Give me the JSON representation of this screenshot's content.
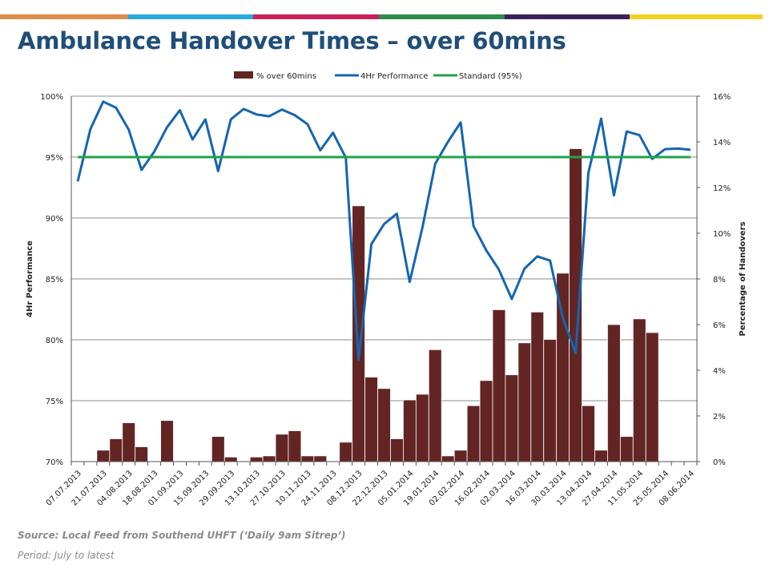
{
  "header": {
    "accent_colors": [
      "#d98c4b",
      "#2aa8dc",
      "#cc1f5c",
      "#2e8b4a",
      "#3b1f5e",
      "#f2d024"
    ],
    "title": "Ambulance Handover Times – over 60mins"
  },
  "footer": {
    "source": "Source: Local Feed from Southend UHFT (‘Daily 9am Sitrep’)",
    "period": "Period: July to latest"
  },
  "chart_data": {
    "type": "bar",
    "legend_position": "top",
    "grid": true,
    "ylabel_left": "4Hr Performance",
    "ylabel_right": "Percentage of Handovers",
    "ylim_left": [
      0.7,
      1.0
    ],
    "ylim_right": [
      0,
      0.16
    ],
    "yticks_left": [
      "70%",
      "75%",
      "80%",
      "85%",
      "90%",
      "95%",
      "100%"
    ],
    "yticks_right": [
      "0%",
      "2%",
      "4%",
      "6%",
      "8%",
      "10%",
      "12%",
      "14%",
      "16%"
    ],
    "x_tick_labels": [
      "07.07.2013",
      "21.07.2013",
      "04.08.2013",
      "18.08.2013",
      "01.09.2013",
      "15.09.2013",
      "29.09.2013",
      "13.10.2013",
      "27.10.2013",
      "10.11.2013",
      "24.11.2013",
      "08.12.2013",
      "22.12.2013",
      "05.01.2014",
      "19.01.2014",
      "02.02.2014",
      "16.02.2014",
      "02.03.2014",
      "16.03.2014",
      "30.03.2014",
      "13.04.2014",
      "27.04.2014",
      "11.05.2014",
      "25.05.2014",
      "08.06.2014"
    ],
    "categories": [
      "07.07.2013",
      "14.07.2013",
      "21.07.2013",
      "28.07.2013",
      "04.08.2013",
      "11.08.2013",
      "18.08.2013",
      "25.08.2013",
      "01.09.2013",
      "08.09.2013",
      "15.09.2013",
      "22.09.2013",
      "29.09.2013",
      "06.10.2013",
      "13.10.2013",
      "20.10.2013",
      "27.10.2013",
      "03.11.2013",
      "10.11.2013",
      "17.11.2013",
      "24.11.2013",
      "01.12.2013",
      "08.12.2013",
      "15.12.2013",
      "22.12.2013",
      "29.12.2013",
      "05.01.2014",
      "12.01.2014",
      "19.01.2014",
      "26.01.2014",
      "02.02.2014",
      "09.02.2014",
      "16.02.2014",
      "23.02.2014",
      "02.03.2014",
      "09.03.2014",
      "16.03.2014",
      "23.03.2014",
      "30.03.2014",
      "06.04.2014",
      "13.04.2014",
      "20.04.2014",
      "27.04.2014",
      "04.05.2014",
      "11.05.2014",
      "18.05.2014",
      "25.05.2014",
      "01.06.2014",
      "08.06.2014"
    ],
    "series": [
      {
        "name": "% over 60mins",
        "type": "bar",
        "axis": "right",
        "color": "#632523",
        "values": [
          0,
          0,
          0.005,
          0.01,
          0.017,
          0.0065,
          0,
          0.018,
          0,
          0,
          0,
          0.011,
          0.002,
          0,
          0.002,
          0.0025,
          0.012,
          0.0135,
          0.0025,
          0.0025,
          0,
          0.0085,
          0.112,
          0.037,
          0.032,
          0.01,
          0.027,
          0.0295,
          0.049,
          0.0025,
          0.005,
          0.0245,
          0.0355,
          0.0665,
          0.038,
          0.052,
          0.0655,
          0.0535,
          0.0825,
          0.137,
          0.0245,
          0.005,
          0.06,
          0.011,
          0.0625,
          0.0565,
          0,
          0,
          0
        ]
      },
      {
        "name": "4Hr Performance",
        "type": "line",
        "axis": "left",
        "color": "#1565b0",
        "values": [
          0.93,
          0.973,
          0.9955,
          0.9905,
          0.9725,
          0.9395,
          0.9545,
          0.9745,
          0.9885,
          0.9645,
          0.981,
          0.9385,
          0.981,
          0.9895,
          0.985,
          0.9835,
          0.989,
          0.9845,
          0.977,
          0.9555,
          0.97,
          0.9495,
          0.7835,
          0.8785,
          0.895,
          0.9035,
          0.8475,
          0.892,
          0.9445,
          0.9625,
          0.9785,
          0.8935,
          0.8735,
          0.8575,
          0.8335,
          0.8585,
          0.8685,
          0.865,
          0.818,
          0.789,
          0.937,
          0.9815,
          0.9185,
          0.971,
          0.968,
          0.9485,
          0.9565,
          0.957,
          0.956
        ]
      },
      {
        "name": "Standard (95%)",
        "type": "line",
        "axis": "left",
        "color": "#1ea34a",
        "values": [
          0.95,
          0.95,
          0.95,
          0.95,
          0.95,
          0.95,
          0.95,
          0.95,
          0.95,
          0.95,
          0.95,
          0.95,
          0.95,
          0.95,
          0.95,
          0.95,
          0.95,
          0.95,
          0.95,
          0.95,
          0.95,
          0.95,
          0.95,
          0.95,
          0.95,
          0.95,
          0.95,
          0.95,
          0.95,
          0.95,
          0.95,
          0.95,
          0.95,
          0.95,
          0.95,
          0.95,
          0.95,
          0.95,
          0.95,
          0.95,
          0.95,
          0.95,
          0.95,
          0.95,
          0.95,
          0.95,
          0.95,
          0.95,
          0.95
        ]
      }
    ]
  }
}
